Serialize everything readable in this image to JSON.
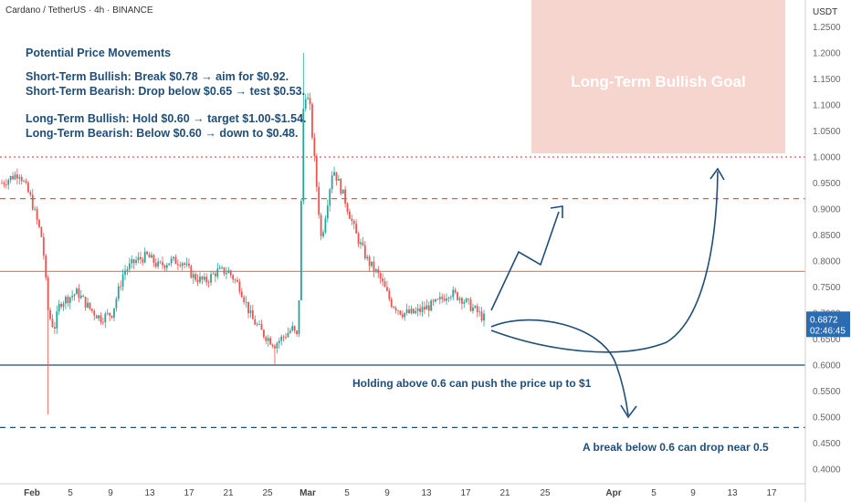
{
  "header": {
    "symbol": "Cardano / TetherUS · 4h · BINANCE",
    "currency": "USDT"
  },
  "notes": {
    "title": "Potential Price Movements",
    "lines_short": [
      "Short-Term Bullish: Break $0.78 → aim for $0.92.",
      "Short-Term Bearish: Drop below $0.65 → test $0.53."
    ],
    "lines_long": [
      "Long-Term Bullish: Hold $0.60 → target $1.00-$1.54.",
      "Long-Term Bearish: Below $0.60 → down to $0.48."
    ]
  },
  "goal_box": {
    "label": "Long-Term Bullish Goal",
    "color": "#f7d5cf"
  },
  "annotations": {
    "hold": "Holding above 0.6 can push the price up to $1",
    "break": "A break below 0.6 can drop near 0.5"
  },
  "price_tag": {
    "price": "0.6872",
    "timer": "02:46:45",
    "color": "#2b6cb0"
  },
  "colors": {
    "bull": "#26a69a",
    "bear": "#ef5350",
    "support": "#1f4e79",
    "resistance": "#f0845c",
    "arrow": "#1f4e79"
  },
  "chart_data": {
    "type": "candlestick",
    "yaxis": {
      "ticks": [
        "1.2500",
        "1.2000",
        "1.1500",
        "1.1000",
        "1.0500",
        "1.0000",
        "0.9500",
        "0.9000",
        "0.8500",
        "0.8000",
        "0.7500",
        "0.7000",
        "0.6500",
        "0.6000",
        "0.5500",
        "0.5000",
        "0.4500",
        "0.4000"
      ],
      "ylim": [
        0.37,
        1.28
      ]
    },
    "xaxis": {
      "ticks": [
        "Feb",
        "5",
        "9",
        "13",
        "17",
        "21",
        "25",
        "Mar",
        "5",
        "9",
        "13",
        "17",
        "21",
        "25",
        "Apr",
        "5",
        "9",
        "13",
        "17"
      ]
    },
    "levels": [
      {
        "value": 1.0,
        "style": "dotted",
        "color": "#ef5350"
      },
      {
        "value": 0.92,
        "style": "dashed",
        "color": "#ef5350"
      },
      {
        "value": 0.78,
        "style": "solid",
        "color": "#f0845c"
      },
      {
        "value": 0.6,
        "style": "solid",
        "color": "#1f4e79"
      },
      {
        "value": 0.48,
        "style": "dashed",
        "color": "#1f4e79"
      }
    ],
    "price_path": [
      [
        0,
        0.95
      ],
      [
        3,
        0.97
      ],
      [
        5,
        0.92
      ],
      [
        7,
        0.84
      ],
      [
        8,
        0.7
      ],
      [
        9,
        0.67
      ],
      [
        10,
        0.72
      ],
      [
        13,
        0.74
      ],
      [
        15,
        0.71
      ],
      [
        17,
        0.69
      ],
      [
        19,
        0.7
      ],
      [
        21,
        0.78
      ],
      [
        23,
        0.8
      ],
      [
        25,
        0.81
      ],
      [
        27,
        0.79
      ],
      [
        29,
        0.8
      ],
      [
        31,
        0.8
      ],
      [
        33,
        0.77
      ],
      [
        35,
        0.76
      ],
      [
        37,
        0.78
      ],
      [
        39,
        0.78
      ],
      [
        41,
        0.75
      ],
      [
        43,
        0.69
      ],
      [
        45,
        0.66
      ],
      [
        47,
        0.64
      ],
      [
        49,
        0.66
      ],
      [
        50,
        0.67
      ],
      [
        51,
        0.65
      ],
      [
        52,
        1.13
      ],
      [
        53,
        1.1
      ],
      [
        55,
        0.84
      ],
      [
        57,
        0.98
      ],
      [
        59,
        0.92
      ],
      [
        61,
        0.85
      ],
      [
        63,
        0.8
      ],
      [
        65,
        0.77
      ],
      [
        67,
        0.72
      ],
      [
        69,
        0.7
      ],
      [
        71,
        0.7
      ],
      [
        73,
        0.71
      ],
      [
        75,
        0.72
      ],
      [
        77,
        0.74
      ],
      [
        79,
        0.73
      ],
      [
        81,
        0.71
      ],
      [
        83,
        0.69
      ]
    ],
    "wicks": [
      {
        "x": 8,
        "low": 0.505
      },
      {
        "x": 52,
        "high": 1.2
      },
      {
        "x": 47,
        "low": 0.6
      }
    ]
  }
}
